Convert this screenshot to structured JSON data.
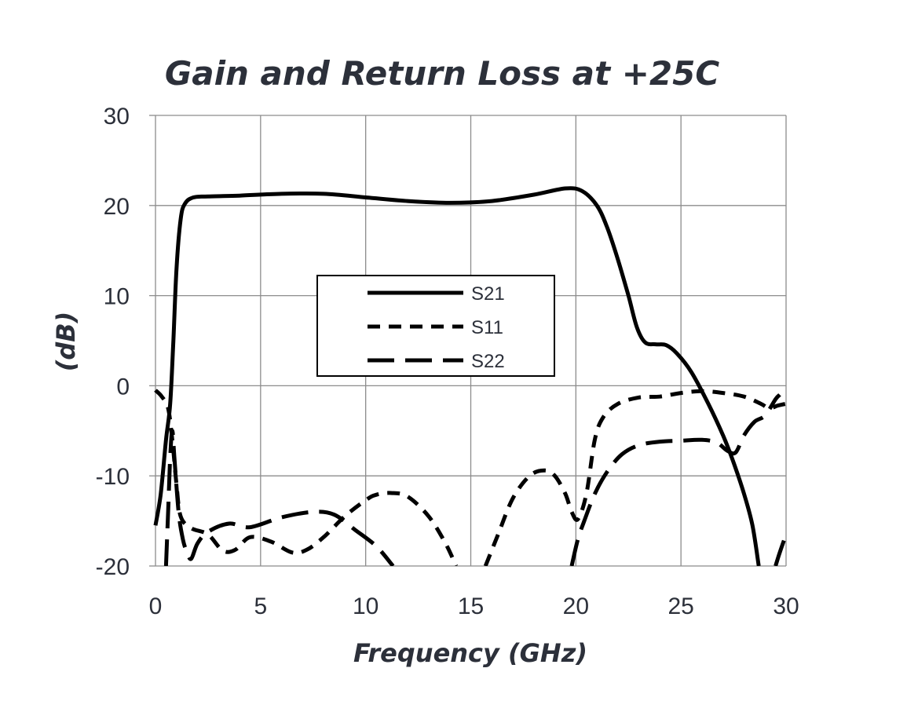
{
  "chart_data": {
    "type": "line",
    "title": "Gain and Return Loss at +25C",
    "xlabel": "Frequency (GHz)",
    "ylabel": "(dB)",
    "xlim": [
      0,
      30
    ],
    "ylim": [
      -20,
      30
    ],
    "x_ticks": [
      0,
      5,
      10,
      15,
      20,
      25,
      30
    ],
    "y_ticks": [
      -20,
      -10,
      0,
      10,
      20,
      30
    ],
    "grid": true,
    "legend_position": "center-left",
    "series": [
      {
        "name": "S21",
        "dash": "solid",
        "points": [
          [
            0,
            -15.5
          ],
          [
            0.25,
            -12
          ],
          [
            0.5,
            -6
          ],
          [
            0.7,
            -2
          ],
          [
            0.85,
            5
          ],
          [
            1.0,
            13
          ],
          [
            1.2,
            18.5
          ],
          [
            1.4,
            20.2
          ],
          [
            1.8,
            20.9
          ],
          [
            2.5,
            21.0
          ],
          [
            4,
            21.1
          ],
          [
            6,
            21.3
          ],
          [
            8,
            21.3
          ],
          [
            10,
            20.9
          ],
          [
            12,
            20.5
          ],
          [
            14,
            20.3
          ],
          [
            16,
            20.5
          ],
          [
            18,
            21.2
          ],
          [
            19.5,
            21.9
          ],
          [
            20.3,
            21.6
          ],
          [
            21,
            20.0
          ],
          [
            21.5,
            17.5
          ],
          [
            22,
            14
          ],
          [
            22.5,
            10
          ],
          [
            22.9,
            6.5
          ],
          [
            23.3,
            4.8
          ],
          [
            23.8,
            4.6
          ],
          [
            24.3,
            4.5
          ],
          [
            24.8,
            3.6
          ],
          [
            25.5,
            1.5
          ],
          [
            26.3,
            -2
          ],
          [
            27,
            -5.5
          ],
          [
            27.5,
            -8.5
          ],
          [
            28,
            -12
          ],
          [
            28.4,
            -15.5
          ],
          [
            28.7,
            -20
          ]
        ]
      },
      {
        "name": "S11",
        "dash": "short",
        "points": [
          [
            0,
            -0.5
          ],
          [
            0.3,
            -1.2
          ],
          [
            0.6,
            -2.5
          ],
          [
            0.8,
            -6
          ],
          [
            1.0,
            -11
          ],
          [
            1.2,
            -14.5
          ],
          [
            1.7,
            -15.8
          ],
          [
            2.5,
            -16.5
          ],
          [
            3.2,
            -18.3
          ],
          [
            3.8,
            -18.2
          ],
          [
            4.5,
            -16.8
          ],
          [
            5.5,
            -17.3
          ],
          [
            6.5,
            -18.5
          ],
          [
            7.2,
            -18.2
          ],
          [
            8,
            -16.8
          ],
          [
            9,
            -14.5
          ],
          [
            10,
            -12.7
          ],
          [
            10.5,
            -12.1
          ],
          [
            11.2,
            -11.9
          ],
          [
            12,
            -12.3
          ],
          [
            13,
            -14.5
          ],
          [
            13.8,
            -17.5
          ],
          [
            14.3,
            -20
          ]
        ]
      },
      {
        "name": "S11",
        "dash": "short",
        "points": [
          [
            15.7,
            -20
          ],
          [
            16.3,
            -16.5
          ],
          [
            17,
            -12.5
          ],
          [
            17.8,
            -10
          ],
          [
            18.5,
            -9.4
          ],
          [
            19,
            -10
          ],
          [
            19.5,
            -12
          ],
          [
            19.8,
            -14
          ],
          [
            20.1,
            -14.8
          ],
          [
            20.5,
            -12
          ],
          [
            20.9,
            -6
          ],
          [
            21.3,
            -3.5
          ],
          [
            22,
            -2
          ],
          [
            23,
            -1.3
          ],
          [
            24,
            -1.2
          ],
          [
            25,
            -0.8
          ],
          [
            26,
            -0.6
          ],
          [
            27,
            -0.8
          ],
          [
            28,
            -1.2
          ],
          [
            28.8,
            -2
          ],
          [
            29.2,
            -2.5
          ],
          [
            29.6,
            -2.2
          ],
          [
            30,
            -2
          ]
        ]
      },
      {
        "name": "S22",
        "dash": "long",
        "points": [
          [
            0.5,
            -20
          ],
          [
            0.6,
            -14
          ],
          [
            0.7,
            -8
          ],
          [
            0.8,
            -5
          ],
          [
            0.9,
            -8
          ],
          [
            1.1,
            -14
          ],
          [
            1.3,
            -17
          ],
          [
            1.5,
            -18.5
          ],
          [
            1.7,
            -19.2
          ],
          [
            2,
            -17.5
          ],
          [
            2.5,
            -16.2
          ],
          [
            3.5,
            -15.3
          ],
          [
            4.5,
            -15.7
          ],
          [
            6,
            -14.6
          ],
          [
            7.5,
            -14
          ],
          [
            8.5,
            -14.3
          ],
          [
            9.5,
            -16
          ],
          [
            10.5,
            -17.8
          ],
          [
            11.3,
            -20
          ]
        ]
      },
      {
        "name": "S22",
        "dash": "long",
        "points": [
          [
            19.8,
            -20
          ],
          [
            20.1,
            -17
          ],
          [
            20.4,
            -15
          ],
          [
            20.9,
            -12
          ],
          [
            21.5,
            -9.5
          ],
          [
            22.2,
            -7.6
          ],
          [
            23,
            -6.6
          ],
          [
            24,
            -6.2
          ],
          [
            25,
            -6.1
          ],
          [
            26,
            -6.0
          ],
          [
            26.7,
            -6.3
          ],
          [
            27.2,
            -7.2
          ],
          [
            27.6,
            -7.4
          ],
          [
            28,
            -5.5
          ],
          [
            28.5,
            -4
          ],
          [
            29,
            -3.3
          ],
          [
            29.5,
            -1.5
          ],
          [
            29.7,
            -1
          ]
        ]
      },
      {
        "name": "S22",
        "dash": "long",
        "points": [
          [
            29.5,
            -20
          ],
          [
            29.7,
            -18.5
          ],
          [
            30,
            -16.5
          ]
        ]
      }
    ]
  },
  "legend": {
    "entries": [
      "S21",
      "S11",
      "S22"
    ]
  }
}
